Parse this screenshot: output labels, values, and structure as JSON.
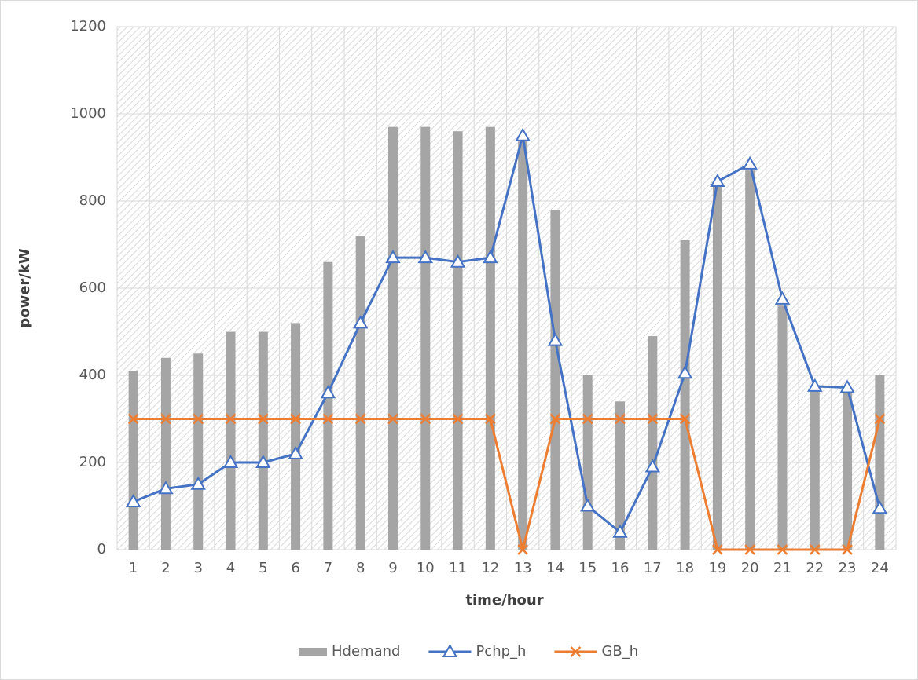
{
  "chart_data": {
    "type": "combo",
    "x_label": "time/hour",
    "y_label": "power/kW",
    "categories": [
      "1",
      "2",
      "3",
      "4",
      "5",
      "6",
      "7",
      "8",
      "9",
      "10",
      "11",
      "12",
      "13",
      "14",
      "15",
      "16",
      "17",
      "18",
      "19",
      "20",
      "21",
      "22",
      "23",
      "24"
    ],
    "series": [
      {
        "name": "Hdemand",
        "type": "bar",
        "color": "#a5a5a5",
        "values": [
          410,
          440,
          450,
          500,
          500,
          520,
          660,
          720,
          970,
          970,
          960,
          970,
          950,
          780,
          400,
          340,
          490,
          710,
          840,
          870,
          560,
          370,
          360,
          400
        ]
      },
      {
        "name": "Pchp_h",
        "type": "line",
        "marker": "triangle",
        "color": "#4472c4",
        "values": [
          110,
          140,
          150,
          200,
          200,
          220,
          360,
          520,
          670,
          670,
          660,
          670,
          950,
          480,
          100,
          40,
          190,
          405,
          845,
          885,
          575,
          375,
          372,
          95
        ]
      },
      {
        "name": "GB_h",
        "type": "line",
        "marker": "x",
        "color": "#ed7d31",
        "values": [
          300,
          300,
          300,
          300,
          300,
          300,
          300,
          300,
          300,
          300,
          300,
          300,
          0,
          300,
          300,
          300,
          300,
          300,
          0,
          0,
          0,
          0,
          0,
          300
        ]
      }
    ],
    "ylim": [
      0,
      1200
    ],
    "yticks": [
      0,
      200,
      400,
      600,
      800,
      1000,
      1200
    ],
    "grid": true,
    "legend": "bottom"
  }
}
